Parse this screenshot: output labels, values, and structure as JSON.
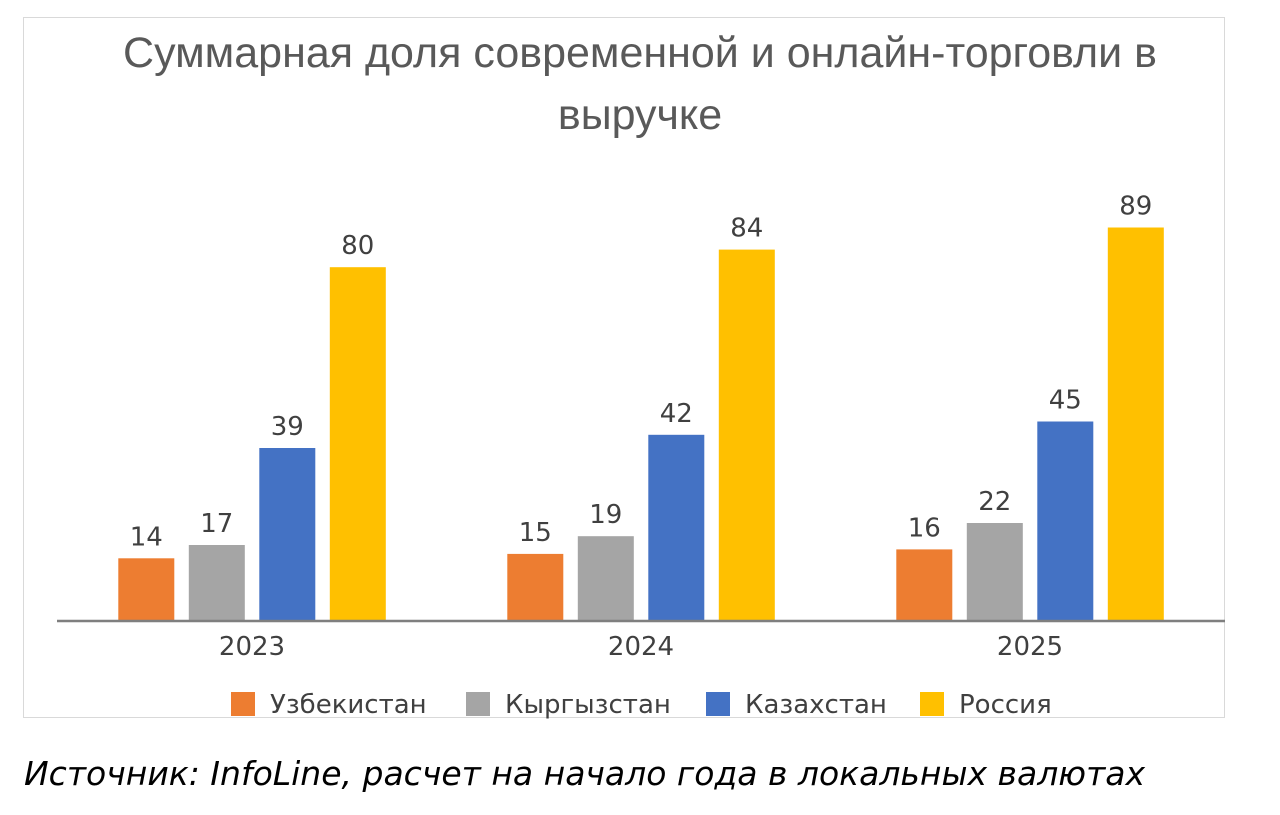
{
  "chart_data": {
    "type": "bar",
    "title_lines": [
      "Суммарная доля современной и онлайн-торговли в",
      "выручке"
    ],
    "categories": [
      "2023",
      "2024",
      "2025"
    ],
    "series": [
      {
        "name": "Узбекистан",
        "values": [
          14,
          15,
          16
        ],
        "color": "#ED7D31"
      },
      {
        "name": "Кыргызстан",
        "values": [
          17,
          19,
          22
        ],
        "color": "#A5A5A5"
      },
      {
        "name": "Казахстан",
        "values": [
          39,
          42,
          45
        ],
        "color": "#4472C4"
      },
      {
        "name": "Россия",
        "values": [
          80,
          84,
          89
        ],
        "color": "#FFC000"
      }
    ],
    "ylim": [
      0,
      100
    ],
    "grid": false,
    "legend_position": "bottom",
    "data_labels": true
  },
  "source_note": "Источник: InfoLine, расчет на начало года в локальных валютах",
  "colors": {
    "title": "#595959",
    "axis": "#7f7f7f",
    "tick_label": "#404040",
    "data_label": "#404040"
  }
}
